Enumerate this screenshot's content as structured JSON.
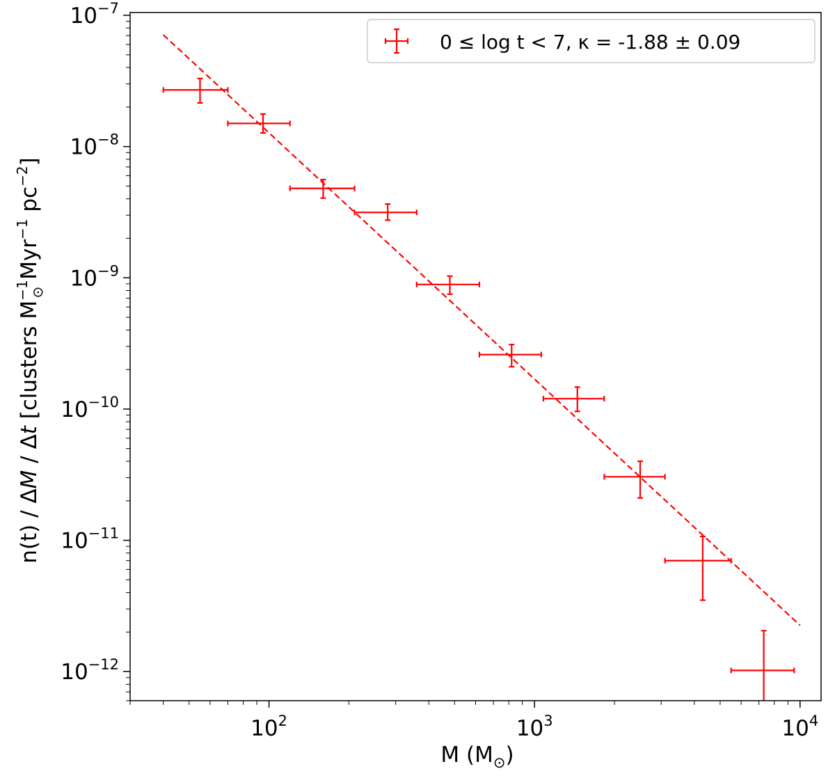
{
  "chart_data": {
    "type": "scatter",
    "x_scale": "log",
    "y_scale": "log",
    "xlim": [
      30,
      12000
    ],
    "ylim": [
      6e-13,
      1.05e-07
    ],
    "xlabel": "M (M",
    "xlabel_sub": "⊙",
    "xlabel_end": ")",
    "ylabel_parts": {
      "a": "n(t) / Δ",
      "b": "M",
      "c": " / Δ",
      "d": "t",
      "e": " [clusters M",
      "e_sup": "−1",
      "e_sub": "⊙",
      "f": " Myr",
      "f_sup": "−1",
      "g": " pc",
      "g_sup": "−2",
      "h": "]"
    },
    "x_ticks": [
      {
        "value": 100,
        "base": "10",
        "exp": "2"
      },
      {
        "value": 1000,
        "base": "10",
        "exp": "3"
      },
      {
        "value": 10000,
        "base": "10",
        "exp": "4"
      }
    ],
    "y_ticks": [
      {
        "value": 1e-12,
        "base": "10",
        "exp": "−12"
      },
      {
        "value": 1e-11,
        "base": "10",
        "exp": "−11"
      },
      {
        "value": 1e-10,
        "base": "10",
        "exp": "−10"
      },
      {
        "value": 1e-09,
        "base": "10",
        "exp": "−9"
      },
      {
        "value": 1e-08,
        "base": "10",
        "exp": "−8"
      },
      {
        "value": 1e-07,
        "base": "10",
        "exp": "−7"
      }
    ],
    "series": [
      {
        "name": "0 ≤ log t < 7, κ = -1.88 ± 0.09",
        "color": "#ff0000",
        "points": [
          {
            "x": 55,
            "xlo": 40,
            "xhi": 70,
            "y": 2.7e-08,
            "ylo": 2.15e-08,
            "yhi": 3.3e-08
          },
          {
            "x": 95,
            "xlo": 70,
            "xhi": 120,
            "y": 1.5e-08,
            "ylo": 1.27e-08,
            "yhi": 1.77e-08
          },
          {
            "x": 160,
            "xlo": 120,
            "xhi": 210,
            "y": 4.8e-09,
            "ylo": 4.05e-09,
            "yhi": 5.6e-09
          },
          {
            "x": 280,
            "xlo": 210,
            "xhi": 360,
            "y": 3.15e-09,
            "ylo": 2.75e-09,
            "yhi": 3.65e-09
          },
          {
            "x": 480,
            "xlo": 360,
            "xhi": 620,
            "y": 8.9e-10,
            "ylo": 7.5e-10,
            "yhi": 1.03e-09
          },
          {
            "x": 820,
            "xlo": 620,
            "xhi": 1060,
            "y": 2.6e-10,
            "ylo": 2.1e-10,
            "yhi": 3.1e-10
          },
          {
            "x": 1450,
            "xlo": 1080,
            "xhi": 1830,
            "y": 1.2e-10,
            "ylo": 9.6e-11,
            "yhi": 1.47e-10
          },
          {
            "x": 2500,
            "xlo": 1830,
            "xhi": 3100,
            "y": 3.05e-11,
            "ylo": 2.1e-11,
            "yhi": 4e-11
          },
          {
            "x": 4300,
            "xlo": 3100,
            "xhi": 5500,
            "y": 7e-12,
            "ylo": 3.5e-12,
            "yhi": 1.07e-11
          },
          {
            "x": 7300,
            "xlo": 5500,
            "xhi": 9500,
            "y": 1.02e-12,
            "ylo": 6e-13,
            "yhi": 2.05e-12
          }
        ]
      }
    ],
    "fit": {
      "x": [
        40,
        10000
      ],
      "y": [
        7.1e-08,
        2.25e-12
      ],
      "color": "#ff0000",
      "style": "dashed"
    },
    "legend_position": "top-right",
    "grid": false
  }
}
